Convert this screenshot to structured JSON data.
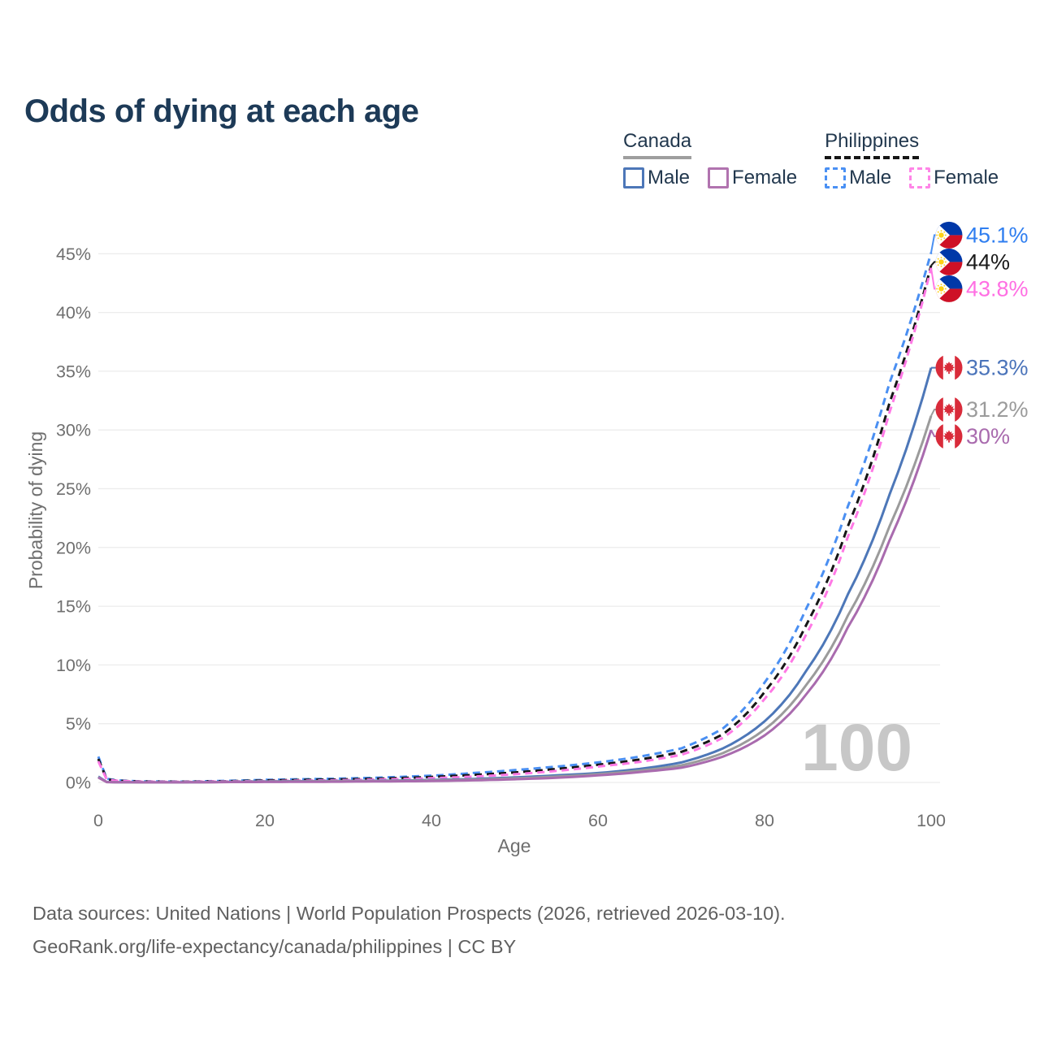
{
  "title": "Odds of dying at each age",
  "legend": {
    "groups": [
      {
        "label": "Canada",
        "line_style": "solid",
        "underline_color": "#9e9e9e",
        "items": [
          {
            "label": "Male",
            "color": "#4d77b8"
          },
          {
            "label": "Female",
            "color": "#b173af"
          }
        ]
      },
      {
        "label": "Philippines",
        "line_style": "dashed",
        "underline_color": "#161616",
        "items": [
          {
            "label": "Male",
            "color": "#4a90f4"
          },
          {
            "label": "Female",
            "color": "#ff85e7"
          }
        ]
      }
    ]
  },
  "footer": {
    "line1": "Data sources: United Nations | World Population Prospects (2026, retrieved 2026-03-10).",
    "line2": "GeoRank.org/life-expectancy/canada/philippines | CC BY"
  },
  "chart_data": {
    "type": "line",
    "title": "Odds of dying at each age",
    "xlabel": "Age",
    "ylabel": "Probability of dying",
    "xlim": [
      0,
      100
    ],
    "ylim_percent": [
      0,
      47
    ],
    "grid": true,
    "legend_position": "top-right",
    "x_ticks": [
      0,
      20,
      40,
      60,
      80,
      100
    ],
    "y_ticks": [
      "0%",
      "5%",
      "10%",
      "15%",
      "20%",
      "25%",
      "30%",
      "35%",
      "40%",
      "45%"
    ],
    "age_watermark": "100",
    "ages": [
      0,
      1,
      2,
      5,
      10,
      15,
      20,
      25,
      30,
      35,
      40,
      45,
      50,
      55,
      60,
      65,
      70,
      75,
      80,
      85,
      90,
      95,
      100
    ],
    "series": [
      {
        "key": "philippines-male",
        "name": "Philippines Male",
        "country": "Philippines",
        "sex": "Male",
        "color": "#4a8ff2",
        "label_color": "#2f7ef0",
        "dashed": true,
        "end_value": "45.1%",
        "values": [
          2.2,
          0.32,
          0.2,
          0.09,
          0.07,
          0.13,
          0.22,
          0.28,
          0.34,
          0.44,
          0.58,
          0.8,
          1.05,
          1.35,
          1.7,
          2.2,
          2.9,
          4.6,
          8.5,
          14.8,
          23.5,
          34.0,
          45.1
        ]
      },
      {
        "key": "philippines-both",
        "name": "Philippines Both sexes",
        "country": "Philippines",
        "sex": "Both",
        "color": "#161616",
        "label_color": "#1a1a1a",
        "dashed": true,
        "end_value": "44%",
        "values": [
          2.0,
          0.28,
          0.17,
          0.08,
          0.06,
          0.1,
          0.17,
          0.22,
          0.27,
          0.35,
          0.47,
          0.64,
          0.85,
          1.15,
          1.5,
          1.95,
          2.6,
          4.1,
          7.7,
          13.4,
          21.8,
          32.3,
          44.0
        ]
      },
      {
        "key": "philippines-female",
        "name": "Philippines Female",
        "country": "Philippines",
        "sex": "Female",
        "color": "#ff79e5",
        "label_color": "#ff6fe3",
        "dashed": true,
        "end_value": "43.8%",
        "values": [
          1.8,
          0.25,
          0.15,
          0.07,
          0.05,
          0.08,
          0.12,
          0.16,
          0.2,
          0.27,
          0.36,
          0.5,
          0.7,
          0.98,
          1.35,
          1.75,
          2.35,
          3.8,
          7.1,
          12.6,
          20.9,
          31.5,
          43.8
        ]
      },
      {
        "key": "canada-male",
        "name": "Canada Male",
        "country": "Canada",
        "sex": "Male",
        "color": "#4d77b8",
        "label_color": "#4b74ba",
        "dashed": false,
        "end_value": "35.3%",
        "values": [
          0.5,
          0.04,
          0.02,
          0.01,
          0.01,
          0.05,
          0.09,
          0.11,
          0.13,
          0.16,
          0.21,
          0.3,
          0.43,
          0.6,
          0.8,
          1.15,
          1.7,
          2.9,
          5.2,
          9.5,
          16.0,
          24.5,
          35.3
        ]
      },
      {
        "key": "canada-both",
        "name": "Canada Both sexes",
        "country": "Canada",
        "sex": "Both",
        "color": "#9b9b9b",
        "label_color": "#9b9b9b",
        "dashed": false,
        "end_value": "31.2%",
        "values": [
          0.45,
          0.035,
          0.018,
          0.01,
          0.01,
          0.04,
          0.07,
          0.09,
          0.11,
          0.13,
          0.17,
          0.24,
          0.35,
          0.5,
          0.7,
          1.0,
          1.45,
          2.5,
          4.5,
          8.3,
          14.2,
          21.8,
          31.2
        ]
      },
      {
        "key": "canada-female",
        "name": "Canada Female",
        "country": "Canada",
        "sex": "Female",
        "color": "#a96bae",
        "label_color": "#a96bae",
        "dashed": false,
        "end_value": "30%",
        "values": [
          0.42,
          0.03,
          0.015,
          0.009,
          0.009,
          0.03,
          0.04,
          0.05,
          0.07,
          0.09,
          0.12,
          0.18,
          0.27,
          0.4,
          0.6,
          0.88,
          1.25,
          2.2,
          4.0,
          7.5,
          13.2,
          20.6,
          30.0
        ]
      }
    ]
  }
}
